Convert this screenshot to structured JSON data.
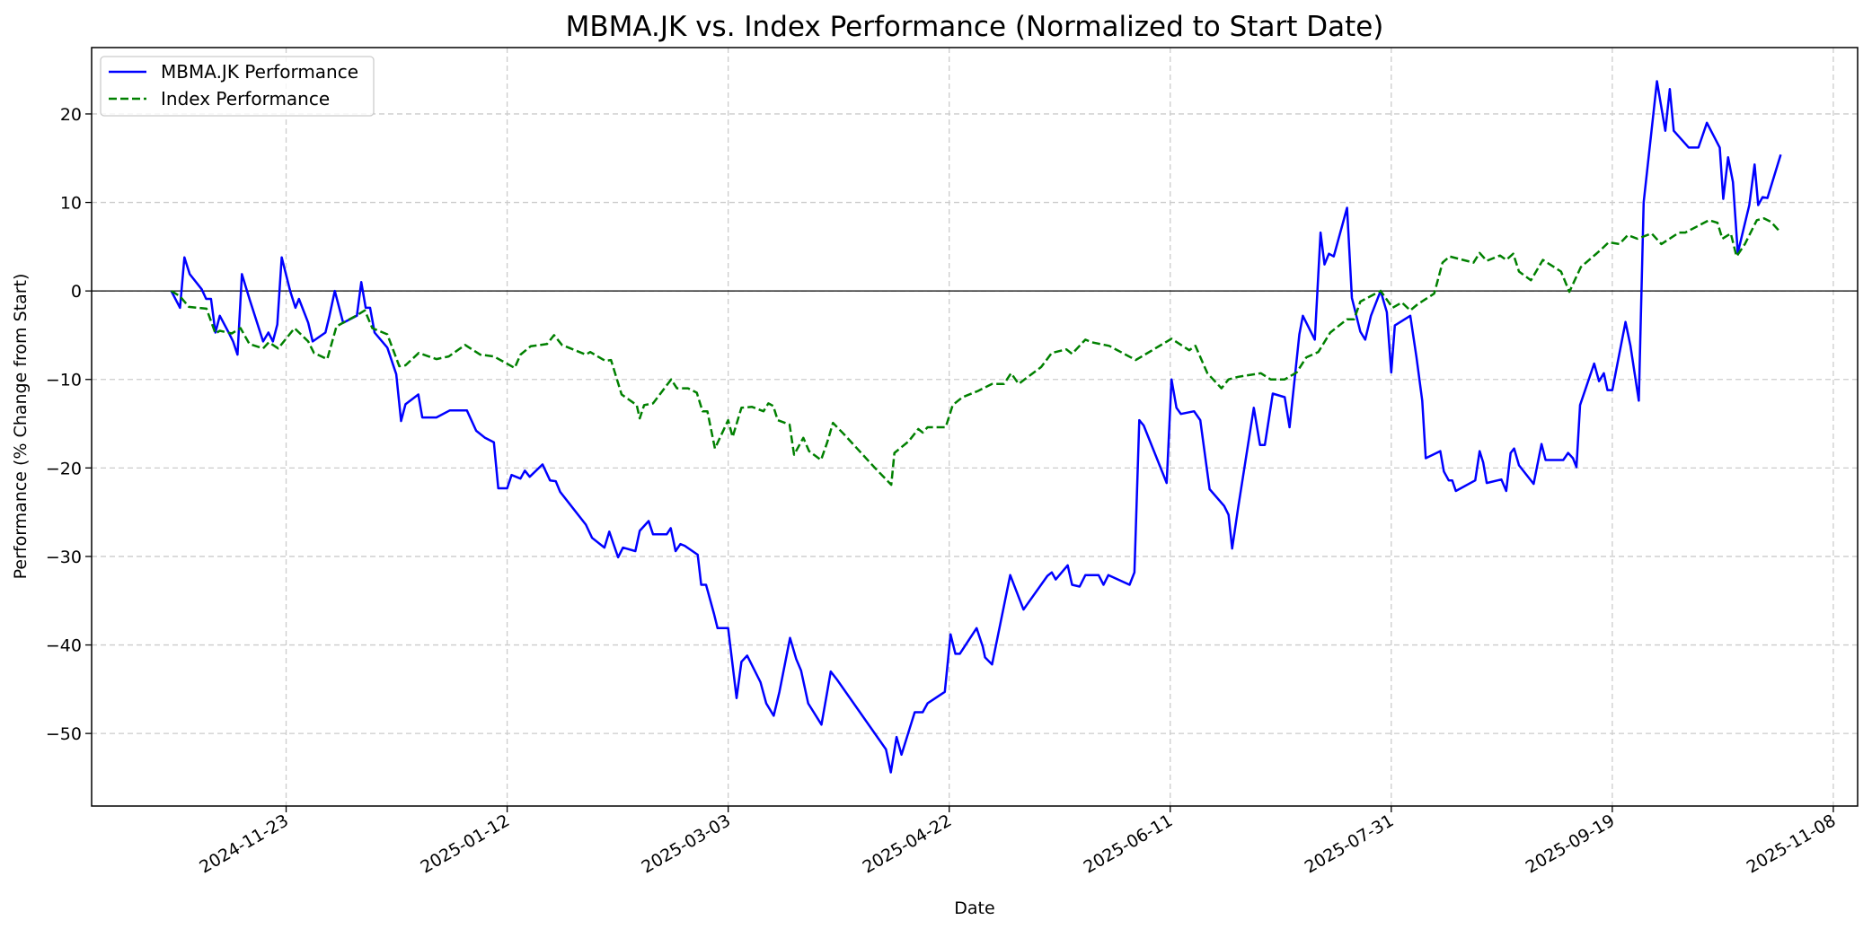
{
  "chart_data": {
    "type": "line",
    "title": "MBMA.JK vs. Index Performance (Normalized to Start Date)",
    "xlabel": "Date",
    "ylabel": "Performance (% Change from Start)",
    "x_unit": "days since 2024-11-23",
    "x_origin": "2024-11-23",
    "xlim": [
      -44,
      355.5
    ],
    "ylim": [
      -58.2,
      27.5
    ],
    "grid": true,
    "legend_position": "top-left",
    "zero_line": 0,
    "x_ticks": [
      {
        "day": 0,
        "label": "2024-11-23"
      },
      {
        "day": 50,
        "label": "2025-01-12"
      },
      {
        "day": 100,
        "label": "2025-03-03"
      },
      {
        "day": 150,
        "label": "2025-04-22"
      },
      {
        "day": 200,
        "label": "2025-06-11"
      },
      {
        "day": 250,
        "label": "2025-07-31"
      },
      {
        "day": 300,
        "label": "2025-09-19"
      },
      {
        "day": 350,
        "label": "2025-11-08"
      }
    ],
    "y_ticks": [
      {
        "value": 20,
        "label": "20"
      },
      {
        "value": 10,
        "label": "10"
      },
      {
        "value": 0,
        "label": "0"
      },
      {
        "value": -10,
        "label": "−10"
      },
      {
        "value": -20,
        "label": "−20"
      },
      {
        "value": -30,
        "label": "−30"
      },
      {
        "value": -40,
        "label": "−40"
      },
      {
        "value": -50,
        "label": "−50"
      }
    ],
    "series": [
      {
        "name": "MBMA.JK Performance",
        "color": "#0000ff",
        "style": "solid",
        "x": [
          -26,
          -24,
          -23,
          -21.8,
          -19.1,
          -18.1,
          -17,
          -16,
          -15,
          -13,
          -12,
          -11,
          -10,
          -8.3,
          -5.2,
          -4,
          -3,
          -2,
          -1,
          0.9,
          2.1,
          2.9,
          5,
          6,
          8.9,
          9.8,
          11,
          12.9,
          16,
          17,
          18,
          19,
          20,
          22.9,
          24.9,
          26,
          27,
          29.9,
          30.8,
          34,
          37,
          40.9,
          43,
          45,
          47,
          48,
          50,
          51,
          53,
          54,
          55.1,
          58,
          59.7,
          61,
          62,
          67.8,
          69.2,
          72,
          73.1,
          75.1,
          76.2,
          79,
          80,
          82,
          83,
          86.1,
          87,
          88.1,
          89.2,
          90.2,
          93.1,
          93.9,
          95,
          96.8,
          97.6,
          100,
          101.9,
          103,
          104.3,
          107.3,
          108.6,
          110.3,
          111.6,
          114,
          115.4,
          116.5,
          118.1,
          121.1,
          122.4,
          123.2,
          124.6,
          135.7,
          136.8,
          138.1,
          139.2,
          142.2,
          144,
          145.1,
          149,
          150.3,
          151.4,
          152.4,
          156.2,
          157.6,
          158.1,
          159.7,
          163.8,
          166.8,
          172.2,
          173.2,
          174.1,
          176.8,
          177.8,
          179.5,
          180.8,
          183.8,
          184.9,
          186,
          190.8,
          191.9,
          193,
          194,
          199.2,
          200.3,
          201.4,
          202.4,
          205.4,
          206.8,
          208.9,
          212.2,
          213.2,
          214,
          215.4,
          218.9,
          220.3,
          221.4,
          223.2,
          225.9,
          227,
          229.2,
          230,
          232.7,
          234,
          234.9,
          235.9,
          237,
          240,
          241.1,
          243,
          244.1,
          245.4,
          247.6,
          249,
          250,
          250.8,
          254.3,
          255.7,
          257,
          257.8,
          261.1,
          261.9,
          263,
          263.8,
          264.6,
          269,
          270,
          270.8,
          271.6,
          274.9,
          276,
          277,
          277.8,
          278.9,
          282.2,
          284,
          284.9,
          288.9,
          290,
          291.1,
          291.9,
          292.7,
          295.9,
          297,
          298.1,
          298.9,
          300,
          303,
          304.1,
          306,
          307.1,
          310.1,
          312,
          313,
          313.9,
          317.3,
          319.5,
          321.4,
          324.3,
          325.1,
          326.2,
          327.3,
          328.4,
          331,
          332.2,
          333,
          334,
          335.1,
          338.1
        ],
        "y": [
          0,
          -1.9,
          3.8,
          1.9,
          0.2,
          -0.9,
          -0.9,
          -4.7,
          -2.8,
          -4.7,
          -5.7,
          -7.2,
          1.9,
          -0.9,
          -5.7,
          -4.7,
          -5.7,
          -3.8,
          3.8,
          0,
          -1.9,
          -0.9,
          -3.6,
          -5.7,
          -4.7,
          -2.8,
          0,
          -3.6,
          -2.8,
          1,
          -1.9,
          -1.9,
          -4.7,
          -6.4,
          -9.4,
          -14.7,
          -12.8,
          -11.7,
          -14.3,
          -14.3,
          -13.5,
          -13.5,
          -15.8,
          -16.6,
          -17.1,
          -22.3,
          -22.3,
          -20.8,
          -21.2,
          -20.3,
          -21,
          -19.6,
          -21.4,
          -21.5,
          -22.7,
          -26.4,
          -27.9,
          -29,
          -27.2,
          -30.1,
          -29,
          -29.4,
          -27.1,
          -26,
          -27.5,
          -27.5,
          -26.8,
          -29.4,
          -28.6,
          -28.8,
          -29.8,
          -33.2,
          -33.2,
          -36.5,
          -38.1,
          -38.1,
          -46,
          -41.9,
          -41.2,
          -44.2,
          -46.6,
          -48,
          -45.3,
          -39.2,
          -41.6,
          -42.9,
          -46.6,
          -49,
          -45.3,
          -43,
          -43.9,
          -51.8,
          -54.4,
          -50.4,
          -52.4,
          -47.6,
          -47.6,
          -46.6,
          -45.3,
          -38.8,
          -41,
          -41,
          -38.1,
          -40.2,
          -41.4,
          -42.2,
          -32.1,
          -36,
          -32.2,
          -31.8,
          -32.6,
          -31,
          -33.2,
          -33.4,
          -32.1,
          -32.1,
          -33.2,
          -32.1,
          -33.2,
          -31.8,
          -14.6,
          -15.2,
          -21.7,
          -10,
          -13.2,
          -13.9,
          -13.6,
          -14.6,
          -22.4,
          -24.3,
          -25.3,
          -29.1,
          -24.4,
          -13.2,
          -17.4,
          -17.4,
          -11.6,
          -12,
          -15.4,
          -4.9,
          -2.8,
          -5.5,
          6.6,
          3,
          4.2,
          3.9,
          9.4,
          -0.8,
          -4.6,
          -5.5,
          -2.8,
          0,
          -2.4,
          -9.2,
          -3.9,
          -2.8,
          -7.5,
          -12.4,
          -18.9,
          -18.1,
          -20.4,
          -21.4,
          -21.4,
          -22.6,
          -21.4,
          -18.1,
          -19.4,
          -21.7,
          -21.3,
          -22.6,
          -18.3,
          -17.8,
          -19.7,
          -21.8,
          -17.3,
          -19.1,
          -19.1,
          -18.3,
          -18.9,
          -19.9,
          -12.9,
          -8.2,
          -10.2,
          -9.3,
          -11.2,
          -11.2,
          -3.5,
          -6.2,
          -12.4,
          10,
          23.7,
          18.1,
          22.8,
          18.1,
          16.2,
          16.2,
          19,
          16.2,
          10.4,
          15.1,
          12.3,
          4.3,
          9.7,
          14.3,
          9.7,
          10.6,
          10.5,
          15.4
        ]
      },
      {
        "name": "Index Performance",
        "color": "#008000",
        "style": "dashed",
        "x": [
          -26,
          -24,
          -22,
          -18,
          -16,
          -15,
          -12.3,
          -10.3,
          -8.3,
          -5.2,
          -3.9,
          -1.8,
          1.9,
          5,
          6.3,
          9.3,
          11.4,
          15.8,
          17.8,
          19.5,
          22.9,
          25.6,
          27,
          30,
          34,
          36.8,
          40.5,
          43.9,
          47,
          51.7,
          53,
          55.3,
          59,
          60.6,
          62.4,
          67.8,
          68.8,
          72.2,
          73.5,
          75.9,
          79.3,
          80,
          81,
          83,
          87.1,
          88.4,
          90.9,
          92.9,
          94.2,
          95.3,
          97,
          100,
          101,
          103,
          105.4,
          108,
          109.1,
          110.2,
          111.2,
          113.9,
          114.9,
          117,
          118.3,
          121,
          122.4,
          123.7,
          126.4,
          133.2,
          136.9,
          137.6,
          140.8,
          143,
          144,
          145.1,
          149.2,
          150.8,
          153,
          156.5,
          159.7,
          162.4,
          164,
          165.7,
          170.8,
          173.2,
          176.5,
          177.8,
          180.8,
          182.2,
          186.2,
          192.2,
          200.3,
          204.3,
          205.7,
          208.4,
          211.6,
          213.2,
          215.4,
          220.5,
          222.7,
          225.9,
          228.6,
          230.8,
          233.5,
          236.2,
          240,
          241.6,
          243,
          247.6,
          250.3,
          252.4,
          254.3,
          256,
          259.7,
          261.6,
          263.2,
          268.6,
          270,
          271.6,
          274.6,
          276,
          277.6,
          278.9,
          281.6,
          284.3,
          288.4,
          290.3,
          292.9,
          297.3,
          299.2,
          301.6,
          303.5,
          305.7,
          308.9,
          311.1,
          315.1,
          316.5,
          319.2,
          321.9,
          323.8,
          324.9,
          326.8,
          328.1,
          330,
          332.7,
          334.3,
          335.9,
          338.1
        ],
        "y": [
          0,
          -0.6,
          -1.8,
          -2,
          -4.8,
          -4.5,
          -4.8,
          -4.2,
          -6,
          -6.5,
          -5.8,
          -6.5,
          -4.2,
          -5.7,
          -7,
          -7.7,
          -4,
          -2.8,
          -2.2,
          -4.2,
          -4.9,
          -8.5,
          -8.4,
          -7,
          -7.7,
          -7.4,
          -6.1,
          -7.2,
          -7.4,
          -8.7,
          -7.2,
          -6.25,
          -6,
          -5,
          -6.1,
          -7.2,
          -6.9,
          -7.9,
          -7.8,
          -11.7,
          -12.9,
          -14.4,
          -12.9,
          -12.7,
          -10,
          -11,
          -11,
          -11.5,
          -13.6,
          -13.6,
          -17.8,
          -14.6,
          -16.5,
          -13.2,
          -13.1,
          -13.6,
          -12.7,
          -13,
          -14.6,
          -15.1,
          -18.5,
          -16.6,
          -18.1,
          -19.1,
          -17.1,
          -14.9,
          -16.3,
          -20,
          -21.9,
          -18.3,
          -17,
          -15.6,
          -16,
          -15.4,
          -15.4,
          -12.9,
          -12,
          -11.3,
          -10.5,
          -10.5,
          -9.3,
          -10.5,
          -8.6,
          -7,
          -6.6,
          -7.1,
          -5.5,
          -5.8,
          -6.2,
          -7.8,
          -5.4,
          -6.7,
          -6.2,
          -9.3,
          -11,
          -10,
          -9.7,
          -9.3,
          -10,
          -10,
          -9.2,
          -7.5,
          -6.9,
          -4.7,
          -3.2,
          -3.2,
          -1.2,
          0,
          -1.9,
          -1.3,
          -2.2,
          -1.5,
          -0.3,
          3.2,
          3.9,
          3.2,
          4.3,
          3.4,
          4,
          3.5,
          4.2,
          2.2,
          1.2,
          3.5,
          2.2,
          -0.1,
          2.7,
          4.6,
          5.5,
          5.3,
          6.3,
          5.9,
          6.5,
          5.3,
          6.6,
          6.6,
          7.3,
          8,
          7.7,
          5.9,
          6.5,
          3.9,
          5.3,
          8,
          8.2,
          7.8,
          6.6
        ]
      }
    ]
  }
}
